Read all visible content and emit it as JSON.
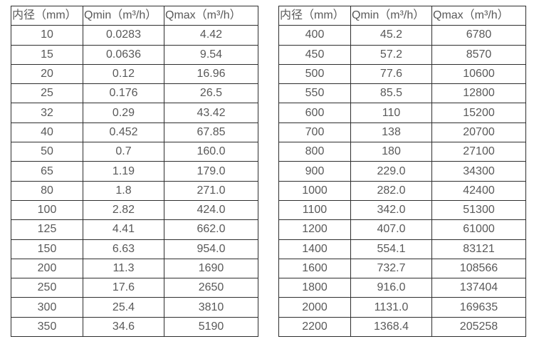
{
  "colors": {
    "border": "#2e2e2e",
    "text": "#595959",
    "background": "#ffffff"
  },
  "tables": [
    {
      "name": "small-diameter-flow-table",
      "headers": [
        "内径（mm）",
        "Qmin（m³/h）",
        "Qmax（m³/h）"
      ],
      "rows": [
        [
          "10",
          "0.0283",
          "4.42"
        ],
        [
          "15",
          "0.0636",
          "9.54"
        ],
        [
          "20",
          "0.12",
          "16.96"
        ],
        [
          "25",
          "0.176",
          "26.5"
        ],
        [
          "32",
          "0.29",
          "43.42"
        ],
        [
          "40",
          "0.452",
          "67.85"
        ],
        [
          "50",
          "0.7",
          "160.0"
        ],
        [
          "65",
          "1.19",
          "179.0"
        ],
        [
          "80",
          "1.8",
          "271.0"
        ],
        [
          "100",
          "2.82",
          "424.0"
        ],
        [
          "125",
          "4.41",
          "662.0"
        ],
        [
          "150",
          "6.63",
          "954.0"
        ],
        [
          "200",
          "11.3",
          "1690"
        ],
        [
          "250",
          "17.6",
          "2650"
        ],
        [
          "300",
          "25.4",
          "3810"
        ],
        [
          "350",
          "34.6",
          "5190"
        ]
      ]
    },
    {
      "name": "large-diameter-flow-table",
      "headers": [
        "内径（mm）",
        "Qmin（m³/h）",
        "Qmax（m³/h）"
      ],
      "rows": [
        [
          "400",
          "45.2",
          "6780"
        ],
        [
          "450",
          "57.2",
          "8570"
        ],
        [
          "500",
          "77.6",
          "10600"
        ],
        [
          "550",
          "85.5",
          "12800"
        ],
        [
          "600",
          "110",
          "15200"
        ],
        [
          "700",
          "138",
          "20700"
        ],
        [
          "800",
          "180",
          "27100"
        ],
        [
          "900",
          "229.0",
          "34300"
        ],
        [
          "1000",
          "282.0",
          "42400"
        ],
        [
          "1100",
          "342.0",
          "51300"
        ],
        [
          "1200",
          "407.0",
          "61000"
        ],
        [
          "1400",
          "554.1",
          "83121"
        ],
        [
          "1600",
          "732.7",
          "108566"
        ],
        [
          "1800",
          "916.0",
          "137404"
        ],
        [
          "2000",
          "1131.0",
          "169635"
        ],
        [
          "2200",
          "1368.4",
          "205258"
        ]
      ]
    }
  ]
}
